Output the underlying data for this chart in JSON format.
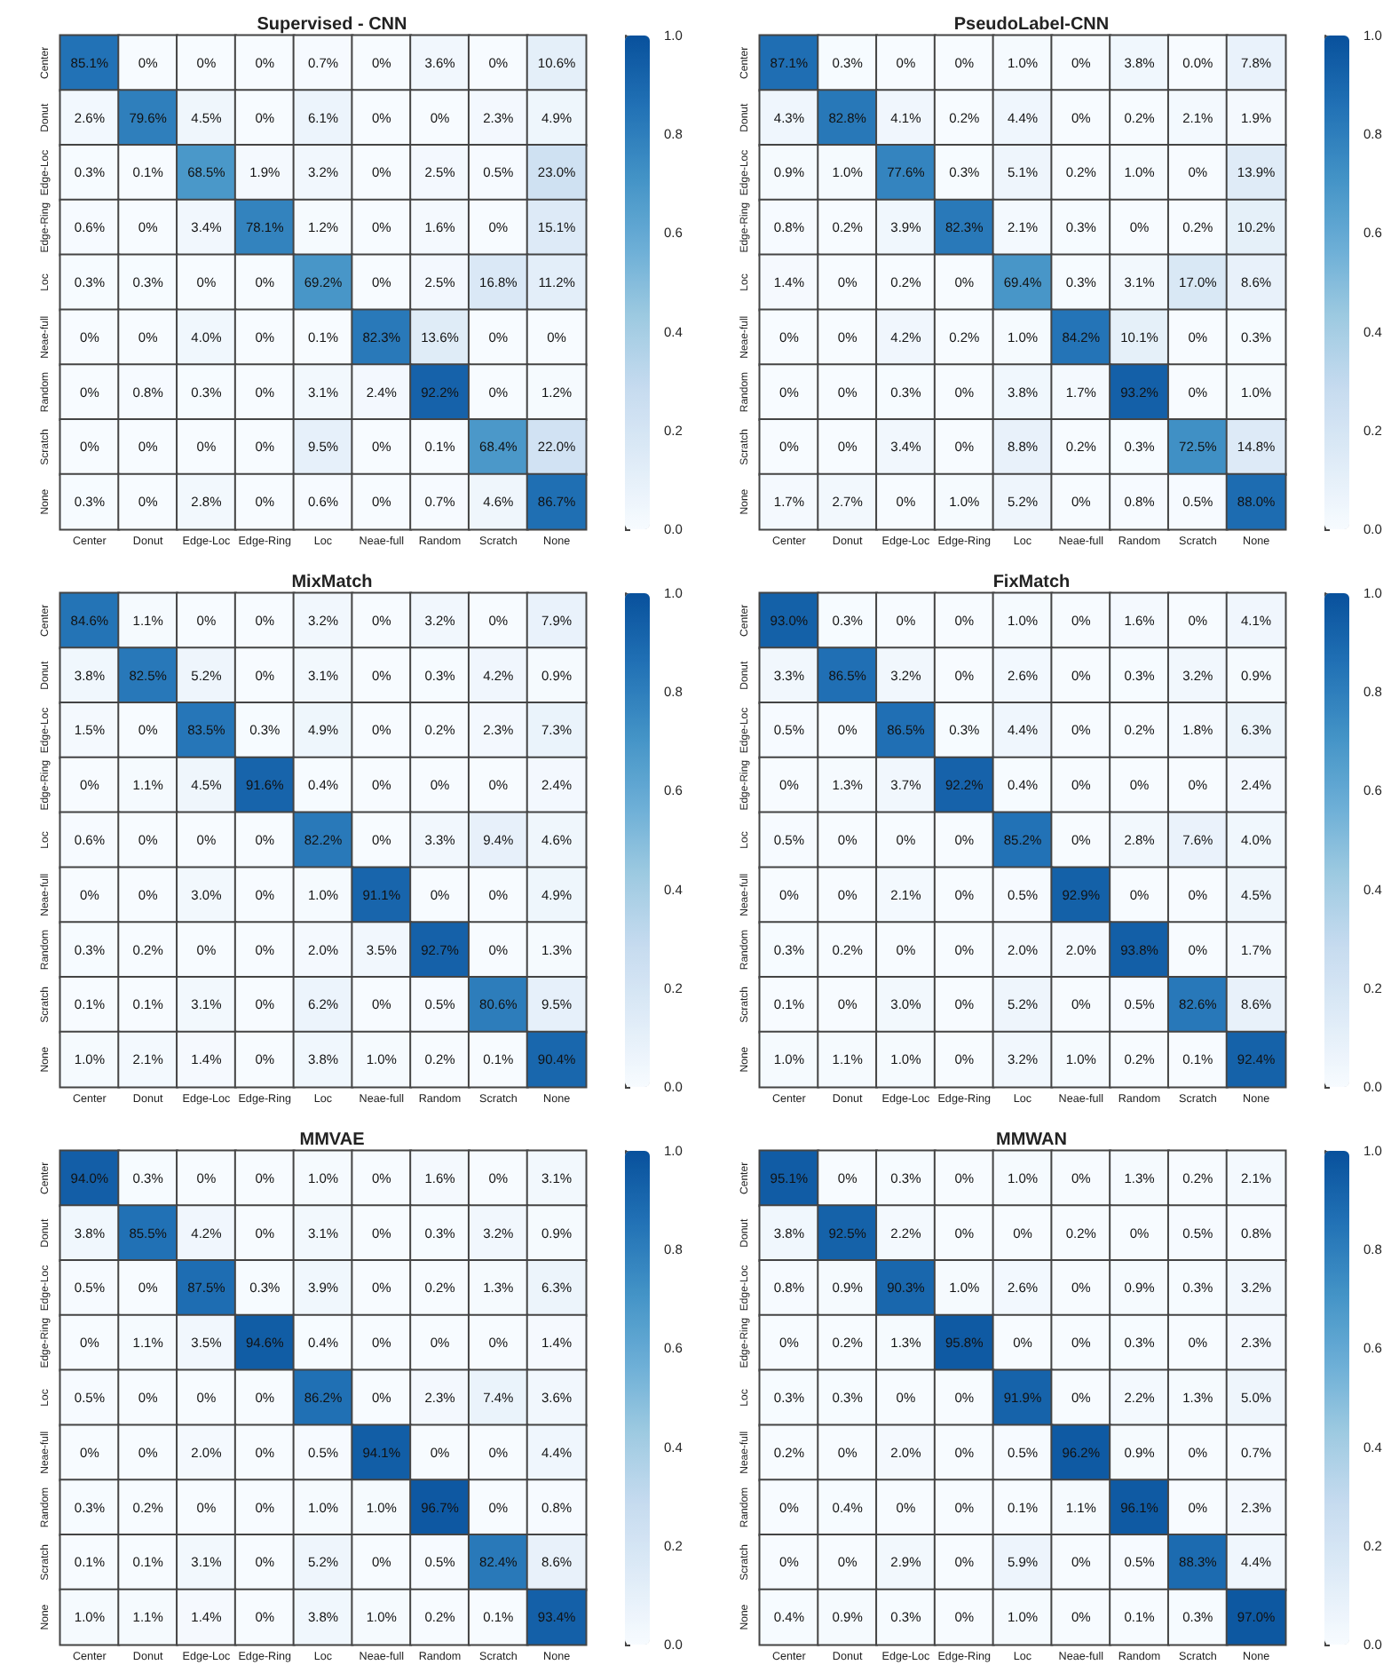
{
  "chart_data": [
    {
      "type": "heatmap",
      "title": "Supervised - CNN",
      "categories": [
        "Center",
        "Donut",
        "Edge-Loc",
        "Edge-Ring",
        "Loc",
        "Neae-full",
        "Random",
        "Scratch",
        "None"
      ],
      "y_categories": [
        "Center",
        "Donut",
        "Edge-Loc",
        "Edge-Ring",
        "Loc",
        "Neae-full",
        "Random",
        "Scratch",
        "None"
      ],
      "cells": [
        [
          0.851,
          0,
          0,
          0,
          0.007,
          0,
          0.036,
          0,
          0.106
        ],
        [
          0.026,
          0.796,
          0.045,
          0,
          0.061,
          0,
          0,
          0.023,
          0.049
        ],
        [
          0.003,
          0.001,
          0.685,
          0.019,
          0.032,
          0,
          0.025,
          0.005,
          0.23
        ],
        [
          0.006,
          0,
          0.034,
          0.781,
          0.012,
          0,
          0.016,
          0,
          0.151
        ],
        [
          0.003,
          0.003,
          0,
          0,
          0.692,
          0,
          0.025,
          0.168,
          0.112
        ],
        [
          0,
          0,
          0.04,
          0,
          0.001,
          0.823,
          0.136,
          0,
          0
        ],
        [
          0,
          0.008,
          0.003,
          0,
          0.031,
          0.024,
          0.922,
          0,
          0.012
        ],
        [
          0,
          0,
          0,
          0,
          0.095,
          0,
          0.001,
          0.684,
          0.22
        ],
        [
          0.003,
          0,
          0.028,
          0,
          0.006,
          0,
          0.007,
          0.046,
          0.867
        ]
      ],
      "cell_labels": [
        [
          "85.1%",
          "0%",
          "0%",
          "0%",
          "0.7%",
          "0%",
          "3.6%",
          "0%",
          "10.6%"
        ],
        [
          "2.6%",
          "79.6%",
          "4.5%",
          "0%",
          "6.1%",
          "0%",
          "0%",
          "2.3%",
          "4.9%"
        ],
        [
          "0.3%",
          "0.1%",
          "68.5%",
          "1.9%",
          "3.2%",
          "0%",
          "2.5%",
          "0.5%",
          "23.0%"
        ],
        [
          "0.6%",
          "0%",
          "3.4%",
          "78.1%",
          "1.2%",
          "0%",
          "1.6%",
          "0%",
          "15.1%"
        ],
        [
          "0.3%",
          "0.3%",
          "0%",
          "0%",
          "69.2%",
          "0%",
          "2.5%",
          "16.8%",
          "11.2%"
        ],
        [
          "0%",
          "0%",
          "4.0%",
          "0%",
          "0.1%",
          "82.3%",
          "13.6%",
          "0%",
          "0%"
        ],
        [
          "0%",
          "0.8%",
          "0.3%",
          "0%",
          "3.1%",
          "2.4%",
          "92.2%",
          "0%",
          "1.2%"
        ],
        [
          "0%",
          "0%",
          "0%",
          "0%",
          "9.5%",
          "0%",
          "0.1%",
          "68.4%",
          "22.0%"
        ],
        [
          "0.3%",
          "0%",
          "2.8%",
          "0%",
          "0.6%",
          "0%",
          "0.7%",
          "4.6%",
          "86.7%"
        ]
      ],
      "clim": [
        0,
        1
      ],
      "cticks": [
        {
          "value": 0,
          "label": "0.0"
        },
        {
          "value": 0.2,
          "label": "0.2"
        },
        {
          "value": 0.4,
          "label": "0.4"
        },
        {
          "value": 0.6,
          "label": "0.6"
        },
        {
          "value": 0.8,
          "label": "0.8"
        },
        {
          "value": 1,
          "label": "1.0"
        }
      ]
    },
    {
      "type": "heatmap",
      "title": "PseudoLabel-CNN",
      "categories": [
        "Center",
        "Donut",
        "Edge-Loc",
        "Edge-Ring",
        "Loc",
        "Neae-full",
        "Random",
        "Scratch",
        "None"
      ],
      "y_categories": [
        "Center",
        "Donut",
        "Edge-Loc",
        "Edge-Ring",
        "Loc",
        "Neae-full",
        "Random",
        "Scratch",
        "None"
      ],
      "cells": [
        [
          0.871,
          0.003,
          0,
          0,
          0.01,
          0,
          0.038,
          0,
          0.078
        ],
        [
          0.043,
          0.828,
          0.041,
          0.002,
          0.044,
          0,
          0.002,
          0.021,
          0.019
        ],
        [
          0.009,
          0.01,
          0.776,
          0.003,
          0.051,
          0.002,
          0.01,
          0,
          0.139
        ],
        [
          0.008,
          0.002,
          0.039,
          0.823,
          0.021,
          0.003,
          0,
          0.002,
          0.102
        ],
        [
          0.014,
          0,
          0.002,
          0,
          0.694,
          0.003,
          0.031,
          0.17,
          0.086
        ],
        [
          0,
          0,
          0.042,
          0.002,
          0.01,
          0.842,
          0.101,
          0,
          0.003
        ],
        [
          0,
          0,
          0.003,
          0,
          0.038,
          0.017,
          0.932,
          0,
          0.01
        ],
        [
          0,
          0,
          0.034,
          0,
          0.088,
          0.002,
          0.003,
          0.725,
          0.148
        ],
        [
          0.017,
          0.027,
          0,
          0.01,
          0.052,
          0,
          0.008,
          0.005,
          0.88
        ]
      ],
      "cell_labels": [
        [
          "87.1%",
          "0.3%",
          "0%",
          "0%",
          "1.0%",
          "0%",
          "3.8%",
          "0.0%",
          "7.8%"
        ],
        [
          "4.3%",
          "82.8%",
          "4.1%",
          "0.2%",
          "4.4%",
          "0%",
          "0.2%",
          "2.1%",
          "1.9%"
        ],
        [
          "0.9%",
          "1.0%",
          "77.6%",
          "0.3%",
          "5.1%",
          "0.2%",
          "1.0%",
          "0%",
          "13.9%"
        ],
        [
          "0.8%",
          "0.2%",
          "3.9%",
          "82.3%",
          "2.1%",
          "0.3%",
          "0%",
          "0.2%",
          "10.2%"
        ],
        [
          "1.4%",
          "0%",
          "0.2%",
          "0%",
          "69.4%",
          "0.3%",
          "3.1%",
          "17.0%",
          "8.6%"
        ],
        [
          "0%",
          "0%",
          "4.2%",
          "0.2%",
          "1.0%",
          "84.2%",
          "10.1%",
          "0%",
          "0.3%"
        ],
        [
          "0%",
          "0%",
          "0.3%",
          "0%",
          "3.8%",
          "1.7%",
          "93.2%",
          "0%",
          "1.0%"
        ],
        [
          "0%",
          "0%",
          "3.4%",
          "0%",
          "8.8%",
          "0.2%",
          "0.3%",
          "72.5%",
          "14.8%"
        ],
        [
          "1.7%",
          "2.7%",
          "0%",
          "1.0%",
          "5.2%",
          "0%",
          "0.8%",
          "0.5%",
          "88.0%"
        ]
      ],
      "clim": [
        0,
        1
      ],
      "cticks": [
        {
          "value": 0,
          "label": "0.0"
        },
        {
          "value": 0.2,
          "label": "0.2"
        },
        {
          "value": 0.4,
          "label": "0.4"
        },
        {
          "value": 0.6,
          "label": "0.6"
        },
        {
          "value": 0.8,
          "label": "0.8"
        },
        {
          "value": 1,
          "label": "1.0"
        }
      ]
    },
    {
      "type": "heatmap",
      "title": "MixMatch",
      "categories": [
        "Center",
        "Donut",
        "Edge-Loc",
        "Edge-Ring",
        "Loc",
        "Neae-full",
        "Random",
        "Scratch",
        "None"
      ],
      "y_categories": [
        "Center",
        "Donut",
        "Edge-Loc",
        "Edge-Ring",
        "Loc",
        "Neae-full",
        "Random",
        "Scratch",
        "None"
      ],
      "cells": [
        [
          0.846,
          0.011,
          0,
          0,
          0.032,
          0,
          0.032,
          0,
          0.079
        ],
        [
          0.038,
          0.825,
          0.052,
          0,
          0.031,
          0,
          0.003,
          0.042,
          0.009
        ],
        [
          0.015,
          0,
          0.835,
          0.003,
          0.049,
          0,
          0.002,
          0.023,
          0.073
        ],
        [
          0,
          0.011,
          0.045,
          0.916,
          0.004,
          0,
          0,
          0,
          0.024
        ],
        [
          0.006,
          0,
          0,
          0,
          0.822,
          0,
          0.033,
          0.094,
          0.046
        ],
        [
          0,
          0,
          0.03,
          0,
          0.01,
          0.911,
          0,
          0,
          0.049
        ],
        [
          0.003,
          0.002,
          0,
          0,
          0.02,
          0.035,
          0.927,
          0,
          0.013
        ],
        [
          0.001,
          0.001,
          0.031,
          0,
          0.062,
          0,
          0.005,
          0.806,
          0.095
        ],
        [
          0.01,
          0.021,
          0.014,
          0,
          0.038,
          0.01,
          0.002,
          0.001,
          0.904
        ]
      ],
      "cell_labels": [
        [
          "84.6%",
          "1.1%",
          "0%",
          "0%",
          "3.2%",
          "0%",
          "3.2%",
          "0%",
          "7.9%"
        ],
        [
          "3.8%",
          "82.5%",
          "5.2%",
          "0%",
          "3.1%",
          "0%",
          "0.3%",
          "4.2%",
          "0.9%"
        ],
        [
          "1.5%",
          "0%",
          "83.5%",
          "0.3%",
          "4.9%",
          "0%",
          "0.2%",
          "2.3%",
          "7.3%"
        ],
        [
          "0%",
          "1.1%",
          "4.5%",
          "91.6%",
          "0.4%",
          "0%",
          "0%",
          "0%",
          "2.4%"
        ],
        [
          "0.6%",
          "0%",
          "0%",
          "0%",
          "82.2%",
          "0%",
          "3.3%",
          "9.4%",
          "4.6%"
        ],
        [
          "0%",
          "0%",
          "3.0%",
          "0%",
          "1.0%",
          "91.1%",
          "0%",
          "0%",
          "4.9%"
        ],
        [
          "0.3%",
          "0.2%",
          "0%",
          "0%",
          "2.0%",
          "3.5%",
          "92.7%",
          "0%",
          "1.3%"
        ],
        [
          "0.1%",
          "0.1%",
          "3.1%",
          "0%",
          "6.2%",
          "0%",
          "0.5%",
          "80.6%",
          "9.5%"
        ],
        [
          "1.0%",
          "2.1%",
          "1.4%",
          "0%",
          "3.8%",
          "1.0%",
          "0.2%",
          "0.1%",
          "90.4%"
        ]
      ],
      "clim": [
        0,
        1
      ],
      "cticks": [
        {
          "value": 0,
          "label": "0.0"
        },
        {
          "value": 0.2,
          "label": "0.2"
        },
        {
          "value": 0.4,
          "label": "0.4"
        },
        {
          "value": 0.6,
          "label": "0.6"
        },
        {
          "value": 0.8,
          "label": "0.8"
        },
        {
          "value": 1,
          "label": "1.0"
        }
      ]
    },
    {
      "type": "heatmap",
      "title": "FixMatch",
      "categories": [
        "Center",
        "Donut",
        "Edge-Loc",
        "Edge-Ring",
        "Loc",
        "Neae-full",
        "Random",
        "Scratch",
        "None"
      ],
      "y_categories": [
        "Center",
        "Donut",
        "Edge-Loc",
        "Edge-Ring",
        "Loc",
        "Neae-full",
        "Random",
        "Scratch",
        "None"
      ],
      "cells": [
        [
          0.93,
          0.003,
          0,
          0,
          0.01,
          0,
          0.016,
          0,
          0.041
        ],
        [
          0.033,
          0.865,
          0.032,
          0,
          0.026,
          0,
          0.003,
          0.032,
          0.009
        ],
        [
          0.005,
          0,
          0.865,
          0.003,
          0.044,
          0,
          0.002,
          0.018,
          0.063
        ],
        [
          0,
          0.013,
          0.037,
          0.922,
          0.004,
          0,
          0,
          0,
          0.024
        ],
        [
          0.005,
          0,
          0,
          0,
          0.852,
          0,
          0.028,
          0.076,
          0.04
        ],
        [
          0,
          0,
          0.021,
          0,
          0.005,
          0.929,
          0,
          0,
          0.045
        ],
        [
          0.003,
          0.002,
          0,
          0,
          0.02,
          0.02,
          0.938,
          0,
          0.017
        ],
        [
          0.001,
          0,
          0.03,
          0,
          0.052,
          0,
          0.005,
          0.826,
          0.086
        ],
        [
          0.01,
          0.011,
          0.01,
          0,
          0.032,
          0.01,
          0.002,
          0.001,
          0.924
        ]
      ],
      "cell_labels": [
        [
          "93.0%",
          "0.3%",
          "0%",
          "0%",
          "1.0%",
          "0%",
          "1.6%",
          "0%",
          "4.1%"
        ],
        [
          "3.3%",
          "86.5%",
          "3.2%",
          "0%",
          "2.6%",
          "0%",
          "0.3%",
          "3.2%",
          "0.9%"
        ],
        [
          "0.5%",
          "0%",
          "86.5%",
          "0.3%",
          "4.4%",
          "0%",
          "0.2%",
          "1.8%",
          "6.3%"
        ],
        [
          "0%",
          "1.3%",
          "3.7%",
          "92.2%",
          "0.4%",
          "0%",
          "0%",
          "0%",
          "2.4%"
        ],
        [
          "0.5%",
          "0%",
          "0%",
          "0%",
          "85.2%",
          "0%",
          "2.8%",
          "7.6%",
          "4.0%"
        ],
        [
          "0%",
          "0%",
          "2.1%",
          "0%",
          "0.5%",
          "92.9%",
          "0%",
          "0%",
          "4.5%"
        ],
        [
          "0.3%",
          "0.2%",
          "0%",
          "0%",
          "2.0%",
          "2.0%",
          "93.8%",
          "0%",
          "1.7%"
        ],
        [
          "0.1%",
          "0%",
          "3.0%",
          "0%",
          "5.2%",
          "0%",
          "0.5%",
          "82.6%",
          "8.6%"
        ],
        [
          "1.0%",
          "1.1%",
          "1.0%",
          "0%",
          "3.2%",
          "1.0%",
          "0.2%",
          "0.1%",
          "92.4%"
        ]
      ],
      "clim": [
        0,
        1
      ],
      "cticks": [
        {
          "value": 0,
          "label": "0.0"
        },
        {
          "value": 0.2,
          "label": "0.2"
        },
        {
          "value": 0.4,
          "label": "0.4"
        },
        {
          "value": 0.6,
          "label": "0.6"
        },
        {
          "value": 0.8,
          "label": "0.8"
        },
        {
          "value": 1,
          "label": "1.0"
        }
      ]
    },
    {
      "type": "heatmap",
      "title": "MMVAE",
      "categories": [
        "Center",
        "Donut",
        "Edge-Loc",
        "Edge-Ring",
        "Loc",
        "Neae-full",
        "Random",
        "Scratch",
        "None"
      ],
      "y_categories": [
        "Center",
        "Donut",
        "Edge-Loc",
        "Edge-Ring",
        "Loc",
        "Neae-full",
        "Random",
        "Scratch",
        "None"
      ],
      "cells": [
        [
          0.94,
          0.003,
          0,
          0,
          0.01,
          0,
          0.016,
          0,
          0.031
        ],
        [
          0.038,
          0.855,
          0.042,
          0,
          0.031,
          0,
          0.003,
          0.032,
          0.009
        ],
        [
          0.005,
          0,
          0.875,
          0.003,
          0.039,
          0,
          0.002,
          0.013,
          0.063
        ],
        [
          0,
          0.011,
          0.035,
          0.946,
          0.004,
          0,
          0,
          0,
          0.014
        ],
        [
          0.005,
          0,
          0,
          0,
          0.862,
          0,
          0.023,
          0.074,
          0.036
        ],
        [
          0,
          0,
          0.02,
          0,
          0.005,
          0.941,
          0,
          0,
          0.044
        ],
        [
          0.003,
          0.002,
          0,
          0,
          0.01,
          0.01,
          0.967,
          0,
          0.008
        ],
        [
          0.001,
          0.001,
          0.031,
          0,
          0.052,
          0,
          0.005,
          0.824,
          0.086
        ],
        [
          0.01,
          0.011,
          0.014,
          0,
          0.038,
          0.01,
          0.002,
          0.001,
          0.934
        ]
      ],
      "cell_labels": [
        [
          "94.0%",
          "0.3%",
          "0%",
          "0%",
          "1.0%",
          "0%",
          "1.6%",
          "0%",
          "3.1%"
        ],
        [
          "3.8%",
          "85.5%",
          "4.2%",
          "0%",
          "3.1%",
          "0%",
          "0.3%",
          "3.2%",
          "0.9%"
        ],
        [
          "0.5%",
          "0%",
          "87.5%",
          "0.3%",
          "3.9%",
          "0%",
          "0.2%",
          "1.3%",
          "6.3%"
        ],
        [
          "0%",
          "1.1%",
          "3.5%",
          "94.6%",
          "0.4%",
          "0%",
          "0%",
          "0%",
          "1.4%"
        ],
        [
          "0.5%",
          "0%",
          "0%",
          "0%",
          "86.2%",
          "0%",
          "2.3%",
          "7.4%",
          "3.6%"
        ],
        [
          "0%",
          "0%",
          "2.0%",
          "0%",
          "0.5%",
          "94.1%",
          "0%",
          "0%",
          "4.4%"
        ],
        [
          "0.3%",
          "0.2%",
          "0%",
          "0%",
          "1.0%",
          "1.0%",
          "96.7%",
          "0%",
          "0.8%"
        ],
        [
          "0.1%",
          "0.1%",
          "3.1%",
          "0%",
          "5.2%",
          "0%",
          "0.5%",
          "82.4%",
          "8.6%"
        ],
        [
          "1.0%",
          "1.1%",
          "1.4%",
          "0%",
          "3.8%",
          "1.0%",
          "0.2%",
          "0.1%",
          "93.4%"
        ]
      ],
      "clim": [
        0,
        1
      ],
      "cticks": [
        {
          "value": 0,
          "label": "0.0"
        },
        {
          "value": 0.2,
          "label": "0.2"
        },
        {
          "value": 0.4,
          "label": "0.4"
        },
        {
          "value": 0.6,
          "label": "0.6"
        },
        {
          "value": 0.8,
          "label": "0.8"
        },
        {
          "value": 1,
          "label": "1.0"
        }
      ]
    },
    {
      "type": "heatmap",
      "title": "MMWAN",
      "categories": [
        "Center",
        "Donut",
        "Edge-Loc",
        "Edge-Ring",
        "Loc",
        "Neae-full",
        "Random",
        "Scratch",
        "None"
      ],
      "y_categories": [
        "Center",
        "Donut",
        "Edge-Loc",
        "Edge-Ring",
        "Loc",
        "Neae-full",
        "Random",
        "Scratch",
        "None"
      ],
      "cells": [
        [
          0.951,
          0,
          0.003,
          0,
          0.01,
          0,
          0.013,
          0.002,
          0.021
        ],
        [
          0.038,
          0.925,
          0.022,
          0,
          0,
          0.002,
          0,
          0.005,
          0.008
        ],
        [
          0.008,
          0.009,
          0.903,
          0.01,
          0.026,
          0,
          0.009,
          0.003,
          0.032
        ],
        [
          0,
          0.002,
          0.013,
          0.958,
          0,
          0,
          0.003,
          0,
          0.023
        ],
        [
          0.003,
          0.003,
          0,
          0,
          0.919,
          0,
          0.022,
          0.013,
          0.05
        ],
        [
          0.002,
          0,
          0.02,
          0,
          0.005,
          0.962,
          0.009,
          0,
          0.007
        ],
        [
          0,
          0.004,
          0,
          0,
          0.001,
          0.011,
          0.961,
          0,
          0.023
        ],
        [
          0,
          0,
          0.029,
          0,
          0.059,
          0,
          0.005,
          0.883,
          0.044
        ],
        [
          0.004,
          0.009,
          0.003,
          0,
          0.01,
          0,
          0.001,
          0.003,
          0.97
        ]
      ],
      "cell_labels": [
        [
          "95.1%",
          "0%",
          "0.3%",
          "0%",
          "1.0%",
          "0%",
          "1.3%",
          "0.2%",
          "2.1%"
        ],
        [
          "3.8%",
          "92.5%",
          "2.2%",
          "0%",
          "0%",
          "0.2%",
          "0%",
          "0.5%",
          "0.8%"
        ],
        [
          "0.8%",
          "0.9%",
          "90.3%",
          "1.0%",
          "2.6%",
          "0%",
          "0.9%",
          "0.3%",
          "3.2%"
        ],
        [
          "0%",
          "0.2%",
          "1.3%",
          "95.8%",
          "0%",
          "0%",
          "0.3%",
          "0%",
          "2.3%"
        ],
        [
          "0.3%",
          "0.3%",
          "0%",
          "0%",
          "91.9%",
          "0%",
          "2.2%",
          "1.3%",
          "5.0%"
        ],
        [
          "0.2%",
          "0%",
          "2.0%",
          "0%",
          "0.5%",
          "96.2%",
          "0.9%",
          "0%",
          "0.7%"
        ],
        [
          "0%",
          "0.4%",
          "0%",
          "0%",
          "0.1%",
          "1.1%",
          "96.1%",
          "0%",
          "2.3%"
        ],
        [
          "0%",
          "0%",
          "2.9%",
          "0%",
          "5.9%",
          "0%",
          "0.5%",
          "88.3%",
          "4.4%"
        ],
        [
          "0.4%",
          "0.9%",
          "0.3%",
          "0%",
          "1.0%",
          "0%",
          "0.1%",
          "0.3%",
          "97.0%"
        ]
      ],
      "clim": [
        0,
        1
      ],
      "cticks": [
        {
          "value": 0,
          "label": "0.0"
        },
        {
          "value": 0.2,
          "label": "0.2"
        },
        {
          "value": 0.4,
          "label": "0.4"
        },
        {
          "value": 0.6,
          "label": "0.6"
        },
        {
          "value": 0.8,
          "label": "0.8"
        },
        {
          "value": 1,
          "label": "1.0"
        }
      ]
    }
  ]
}
